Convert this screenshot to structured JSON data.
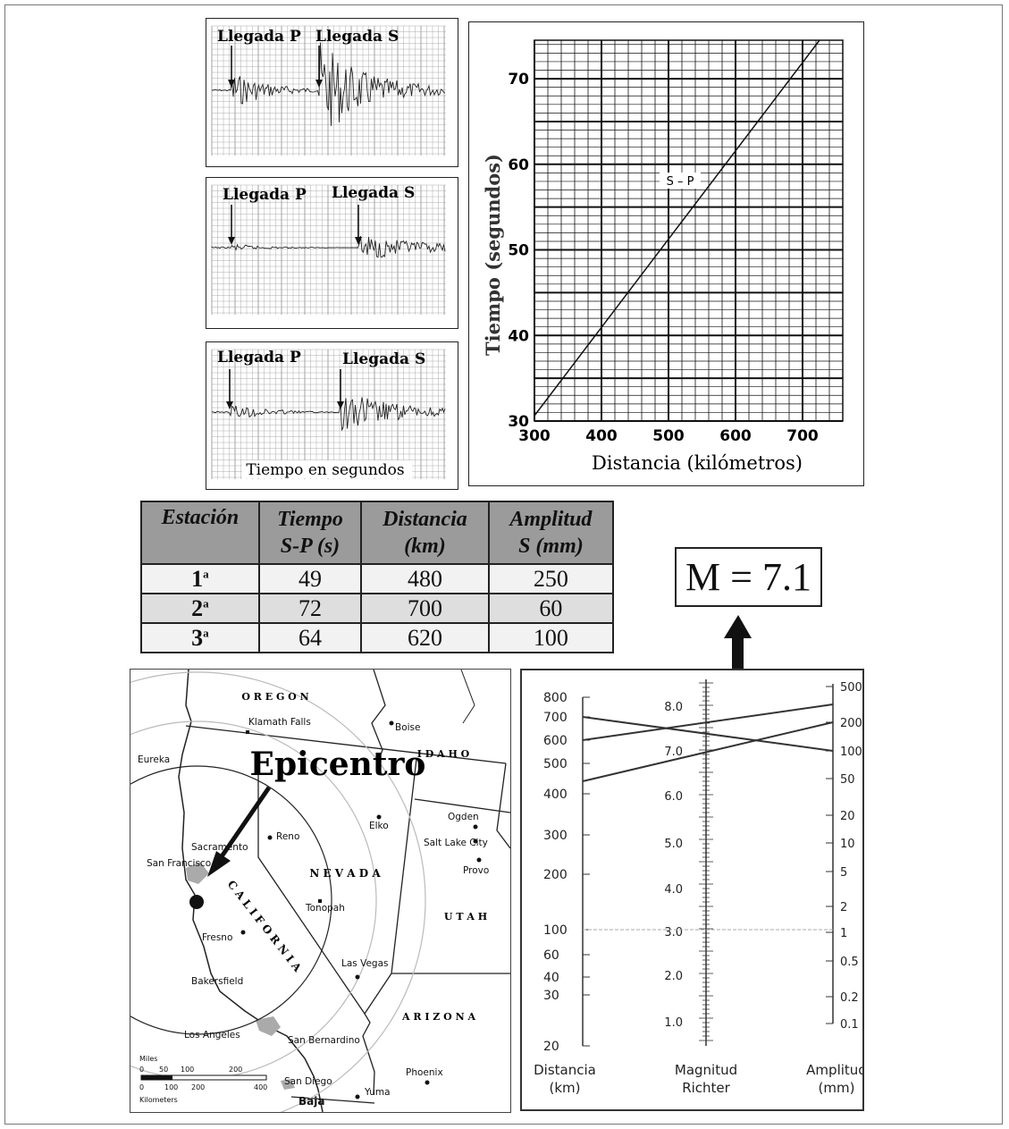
{
  "seismograms": [
    {
      "p_label": "Llegada P",
      "s_label": "Llegada S"
    },
    {
      "p_label": "Llegada P",
      "s_label": "Llegada S"
    },
    {
      "p_label": "Llegada P",
      "s_label": "Llegada S",
      "xlabel": "Tiempo en segundos"
    }
  ],
  "sp_chart": {
    "ylabel": "Tiempo (segundos)",
    "xlabel": "Distancia (kilómetros)",
    "line_label": "S – P",
    "x_ticks": [
      "300",
      "400",
      "500",
      "600",
      "700"
    ],
    "y_ticks": [
      "30",
      "40",
      "50",
      "60",
      "70"
    ]
  },
  "table": {
    "headers": [
      [
        "Estación",
        ""
      ],
      [
        "Tiempo",
        "S-P (s)"
      ],
      [
        "Distancia",
        "(km)"
      ],
      [
        "Amplitud",
        "S (mm)"
      ]
    ],
    "rows": [
      {
        "station": "1",
        "sup": "a",
        "time": "49",
        "distance": "480",
        "amplitude": "250"
      },
      {
        "station": "2",
        "sup": "a",
        "time": "72",
        "distance": "700",
        "amplitude": "60"
      },
      {
        "station": "3",
        "sup": "a",
        "time": "64",
        "distance": "620",
        "amplitude": "100"
      }
    ]
  },
  "magnitude_result": "M = 7.1",
  "map": {
    "epicenter_label": "Epicentro",
    "states": [
      "O R E G O N",
      "I D A H O",
      "N E V A D A",
      "U T A H",
      "A R I Z O N A",
      "C A L I F O R N I A"
    ],
    "cities": [
      "Klamath Falls",
      "Boise",
      "Eureka",
      "Reno",
      "Elko",
      "Ogden",
      "Salt Lake City",
      "Provo",
      "Sacramento",
      "San Francisco",
      "Tonopah",
      "Fresno",
      "Las Vegas",
      "Bakersfield",
      "Los Angeles",
      "San Bernardino",
      "San Diego",
      "Yuma",
      "Phoenix",
      "Baja"
    ],
    "scale_miles": "Miles",
    "scale_km": "Kilometers",
    "scale_miles_ticks": [
      "0",
      "50",
      "100",
      "200"
    ],
    "scale_km_ticks": [
      "0",
      "100",
      "200",
      "400"
    ]
  },
  "nomogram": {
    "distance_ticks": [
      "800",
      "700",
      "600",
      "500",
      "400",
      "300",
      "200",
      "100",
      "60",
      "40",
      "30",
      "20"
    ],
    "magnitude_ticks": [
      "8.0",
      "7.0",
      "6.0",
      "5.0",
      "4.0",
      "3.0",
      "2.0",
      "1.0"
    ],
    "amplitude_ticks": [
      "500",
      "200",
      "100",
      "50",
      "20",
      "10",
      "5",
      "2",
      "1",
      "0.5",
      "0.2",
      "0.1"
    ],
    "distance_label": [
      "Distancia",
      "(km)"
    ],
    "magnitude_label": [
      "Magnitud",
      "Richter"
    ],
    "amplitude_label": [
      "Amplitud",
      "(mm)"
    ]
  }
}
